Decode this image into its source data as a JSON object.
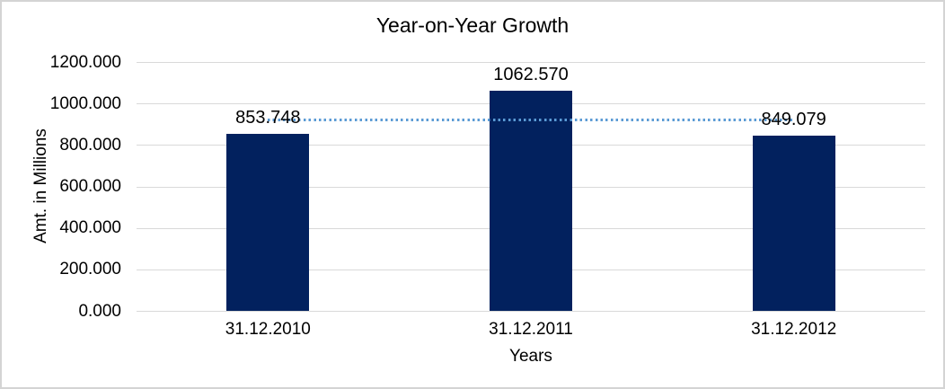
{
  "chart_data": {
    "type": "bar",
    "title": "Year-on-Year Growth",
    "xlabel": "Years",
    "ylabel": "Amt. in Millions",
    "categories": [
      "31.12.2010",
      "31.12.2011",
      "31.12.2012"
    ],
    "values": [
      853.748,
      1062.57,
      849.079
    ],
    "value_labels": [
      "853.748",
      "1062.570",
      "849.079"
    ],
    "ylim": [
      0,
      1200
    ],
    "ytick_step": 200,
    "ytick_labels": [
      "0.000",
      "200.000",
      "400.000",
      "600.000",
      "800.000",
      "1000.000",
      "1200.000"
    ],
    "grid": "horizontal",
    "legend": "none",
    "trendline": {
      "style": "dotted",
      "color": "#5B9BD5",
      "value": 921.8,
      "spans": "from first bar center to last bar center"
    },
    "colors": {
      "bar": "#02215E",
      "gridline": "#D9D9D9",
      "text": "#000000",
      "frame_border": "#D4D4D4"
    }
  }
}
